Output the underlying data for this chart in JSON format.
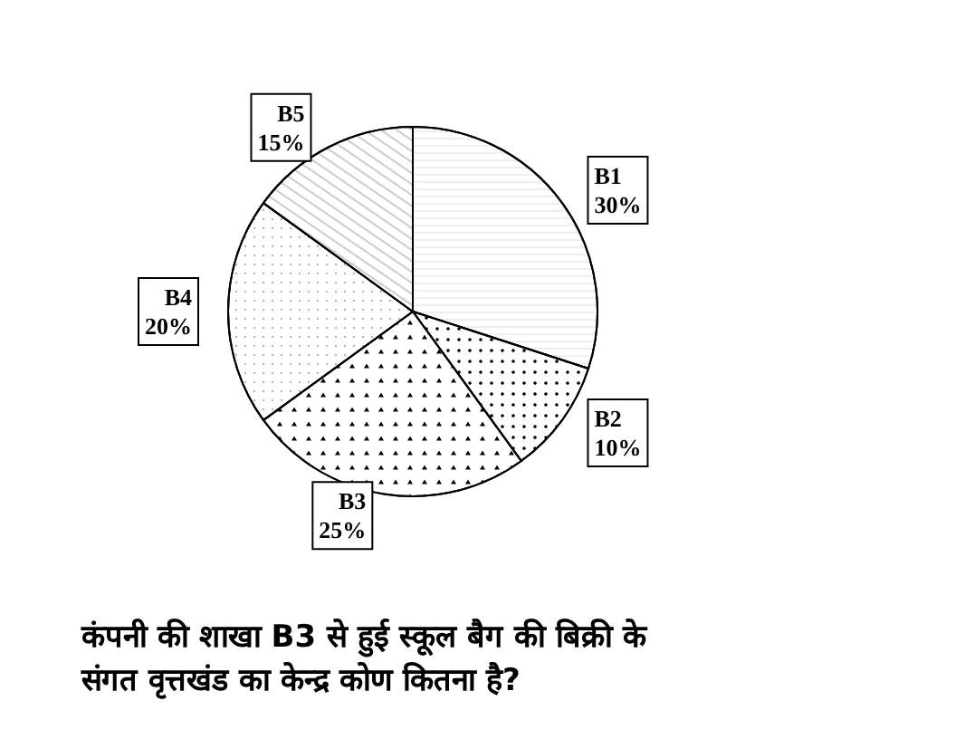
{
  "chart_data": {
    "type": "pie",
    "categories": [
      "B1",
      "B2",
      "B3",
      "B4",
      "B5"
    ],
    "values": [
      30,
      10,
      25,
      20,
      15
    ],
    "value_labels": [
      "30%",
      "10%",
      "25%",
      "20%",
      "15%"
    ],
    "colors": [
      "#ffffff",
      "#ffffff",
      "#ffffff",
      "#ffffff",
      "#ffffff"
    ],
    "legend": false,
    "annotations": [
      "कंपनी की शाखा B3 से हुई स्कूल बैग की बिक्री के\nसंगत वृत्तखंड का केन्द्र कोण कितना है?"
    ]
  }
}
